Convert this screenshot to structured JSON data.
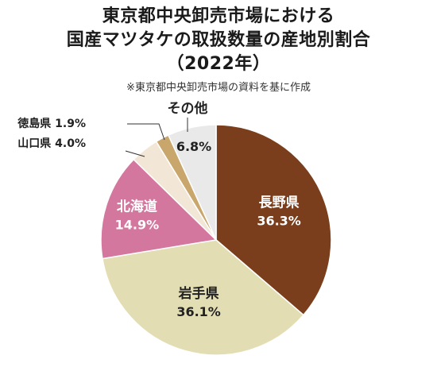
{
  "title_lines": [
    "東京都中央卸売市場における",
    "国産マツタケの取扱数量の産地別割合",
    "（2022年）"
  ],
  "note": "※東京都中央卸売市場の資料を基に作成",
  "chart_data": {
    "type": "pie",
    "title": "東京都中央卸売市場における国産マツタケの取扱数量の産地別割合（2022年）",
    "unit": "%",
    "slices": [
      {
        "label": "長野県",
        "value": 36.3,
        "value_text": "36.3%",
        "color": "#7a3e1c",
        "text_color": "#ffffff"
      },
      {
        "label": "岩手県",
        "value": 36.1,
        "value_text": "36.1%",
        "color": "#e3ddb4",
        "text_color": "#222222"
      },
      {
        "label": "北海道",
        "value": 14.9,
        "value_text": "14.9%",
        "color": "#d4779e",
        "text_color": "#ffffff"
      },
      {
        "label": "山口県",
        "value": 4.0,
        "value_text": "4.0%",
        "color": "#f2e6d6",
        "text_color": "#222222"
      },
      {
        "label": "徳島県",
        "value": 1.9,
        "value_text": "1.9%",
        "color": "#c9a66b",
        "text_color": "#222222"
      },
      {
        "label": "その他",
        "value": 6.8,
        "value_text": "6.8%",
        "color": "#e9e9e9",
        "text_color": "#222222"
      }
    ]
  }
}
